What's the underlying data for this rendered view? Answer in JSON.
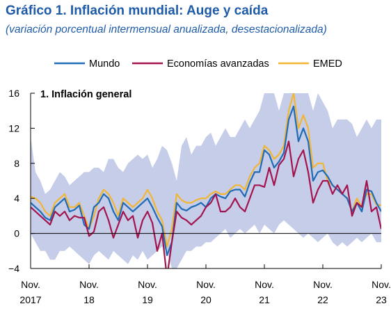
{
  "title": "Gráfico 1.  Inflación mundial: Auge y caída",
  "subtitle": "(variación porcentual intermensual anualizada, desestacionalizada)",
  "colors": {
    "band": "#c5cde8",
    "mundo": "#1f6bb5",
    "avanzadas": "#a3144f",
    "emed": "#f2b535",
    "axis": "#000000",
    "title": "#1e5ba8"
  },
  "chart_data": {
    "type": "line",
    "panel_label": "1. Inflación general",
    "legend": [
      "Mundo",
      "Economías avanzadas",
      "EMED"
    ],
    "legend_position": "top",
    "ylim": [
      -4,
      16
    ],
    "yticks": [
      -4,
      0,
      4,
      8,
      12,
      16
    ],
    "xlim": [
      0,
      72
    ],
    "x_unit": "months since Nov. 2017",
    "xticks": [
      {
        "x": 0,
        "line1": "Nov.",
        "line2": "2017"
      },
      {
        "x": 12,
        "line1": "Nov.",
        "line2": "18"
      },
      {
        "x": 24,
        "line1": "Nov.",
        "line2": "19"
      },
      {
        "x": 36,
        "line1": "Nov.",
        "line2": "20"
      },
      {
        "x": 48,
        "line1": "Nov.",
        "line2": "21"
      },
      {
        "x": 60,
        "line1": "Nov.",
        "line2": "22"
      },
      {
        "x": 72,
        "line1": "Nov.",
        "line2": "23"
      }
    ],
    "grid": false,
    "band_upper": [
      11,
      7,
      6,
      4.5,
      5,
      6,
      7,
      6.5,
      5.5,
      6,
      6.5,
      7,
      7,
      7.5,
      7.5,
      7,
      8.5,
      8.5,
      7.5,
      7,
      8,
      8.5,
      9,
      8.5,
      9,
      7.5,
      8.5,
      10,
      9.5,
      8,
      6,
      10,
      11,
      9,
      10,
      10,
      11,
      11.5,
      10,
      11,
      12,
      11,
      11,
      12,
      13,
      12,
      13,
      14,
      16,
      16,
      16,
      14,
      16,
      16,
      16,
      16,
      16,
      16,
      14,
      16,
      15,
      14,
      12,
      13,
      13,
      13,
      12.5,
      11,
      12,
      13,
      12,
      13,
      13
    ],
    "band_lower": [
      0,
      -1,
      -2,
      -2,
      -3,
      -3,
      -2,
      -2,
      -1.5,
      -2,
      -2.5,
      -3,
      -3.5,
      -2.5,
      -2,
      -2.5,
      -3,
      -2,
      -2.5,
      -3,
      -3.5,
      -2.5,
      -3,
      -2,
      -3,
      -2.5,
      -2,
      -1.5,
      -2,
      -4,
      -4,
      -3,
      -2,
      -2,
      -1.5,
      -1.5,
      -1,
      -1,
      -0.5,
      0,
      0.5,
      -0.5,
      0,
      0.5,
      0,
      0.5,
      1,
      0,
      1,
      0.5,
      0,
      1,
      1.5,
      1,
      0.5,
      0,
      -0.5,
      0,
      -0.5,
      -1,
      -0.5,
      0,
      -1,
      -1.5,
      -1,
      -1.5,
      -1,
      -0.5,
      -1,
      -0.5,
      0,
      -1,
      -1
    ],
    "series": [
      {
        "name": "Mundo",
        "values": [
          3.5,
          3.0,
          2.5,
          1.8,
          1.5,
          3.0,
          3.5,
          4.0,
          2.5,
          2.7,
          3.2,
          1.0,
          0.5,
          3.0,
          3.5,
          4.5,
          4.0,
          2.5,
          1.5,
          3.5,
          3.0,
          2.5,
          3.0,
          3.5,
          4.0,
          3.0,
          1.8,
          0.8,
          -2.5,
          -1.0,
          3.5,
          2.8,
          2.6,
          3.0,
          3.2,
          3.5,
          3.0,
          4.0,
          4.5,
          4.2,
          4.0,
          4.8,
          5.0,
          5.0,
          4.2,
          5.8,
          7.0,
          7.0,
          9.5,
          9.0,
          7.5,
          8.2,
          9.2,
          13.0,
          14.5,
          10.5,
          12.0,
          10.5,
          6.0,
          7.0,
          7.2,
          6.5,
          5.5,
          5.0,
          4.5,
          4.0,
          2.5,
          3.5,
          2.5,
          5.0,
          4.8,
          3.5,
          2.5
        ]
      },
      {
        "name": "Economías avanzadas",
        "values": [
          3.0,
          2.5,
          2.0,
          1.5,
          1.0,
          2.5,
          2.0,
          2.5,
          1.5,
          2.0,
          1.8,
          1.8,
          -0.3,
          0.2,
          2.5,
          3.0,
          1.5,
          -0.5,
          1.0,
          2.5,
          1.5,
          2.0,
          -0.5,
          1.5,
          2.5,
          1.2,
          -2.0,
          0.0,
          -5.0,
          -1.0,
          2.5,
          1.8,
          1.5,
          1.0,
          1.5,
          2.0,
          3.0,
          3.5,
          4.5,
          2.5,
          2.5,
          3.0,
          4.0,
          3.0,
          2.5,
          4.0,
          5.5,
          5.5,
          5.3,
          7.5,
          5.5,
          7.8,
          8.5,
          10.5,
          6.5,
          8.5,
          9.5,
          7.0,
          3.5,
          5.0,
          6.0,
          6.0,
          4.5,
          5.5,
          4.5,
          5.5,
          2.0,
          3.5,
          3.0,
          6.0,
          2.5,
          3.0,
          0.5
        ]
      },
      {
        "name": "EMED",
        "values": [
          4.2,
          4.0,
          3.5,
          2.5,
          2.0,
          3.5,
          4.0,
          4.5,
          3.0,
          3.0,
          3.5,
          2.0,
          0.5,
          2.0,
          4.0,
          5.0,
          4.5,
          3.5,
          2.0,
          4.0,
          3.5,
          3.0,
          3.5,
          4.0,
          5.0,
          4.0,
          2.5,
          1.5,
          -1.5,
          0.5,
          4.5,
          3.8,
          3.5,
          3.5,
          3.8,
          4.0,
          4.0,
          4.5,
          4.8,
          4.5,
          4.5,
          5.0,
          5.5,
          5.5,
          5.0,
          6.5,
          7.5,
          8.0,
          10.0,
          9.5,
          8.5,
          9.0,
          10.0,
          14.0,
          16.0,
          12.0,
          13.5,
          12.0,
          7.5,
          8.0,
          8.0,
          6.0,
          5.5,
          5.0,
          4.5,
          4.0,
          2.5,
          4.0,
          3.0,
          4.5,
          4.5,
          3.3,
          3.2
        ]
      }
    ]
  }
}
